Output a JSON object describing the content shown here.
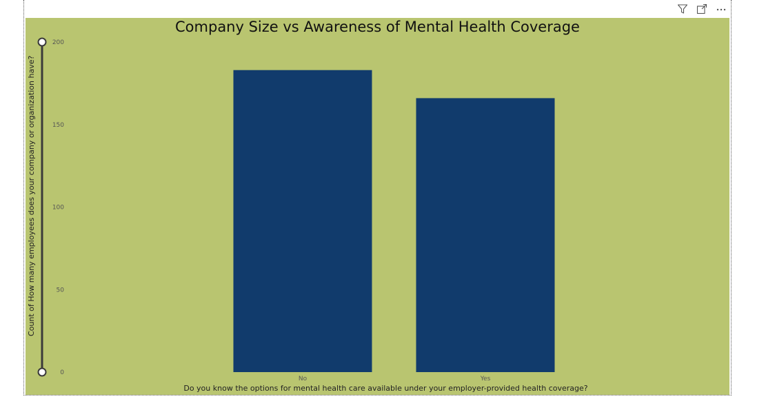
{
  "toolbar": {
    "filter_icon": "filter-icon",
    "focus_icon": "focus-mode-icon",
    "more_icon": "more-options-icon"
  },
  "colors": {
    "background": "#b9c570",
    "bar": "#113b6c",
    "slider": "#3a3a3a"
  },
  "chart_data": {
    "type": "bar",
    "title": "Company Size vs Awareness of Mental Health Coverage",
    "xlabel": "Do you know the options for mental health care available under your employer-provided health coverage?",
    "ylabel": "Count of How many employees does your company or organization have?",
    "categories": [
      "No",
      "Yes"
    ],
    "values": [
      183,
      166
    ],
    "ylim": [
      0,
      200
    ],
    "yticks": [
      0,
      50,
      100,
      150,
      200
    ],
    "grid": false,
    "legend": "none"
  }
}
